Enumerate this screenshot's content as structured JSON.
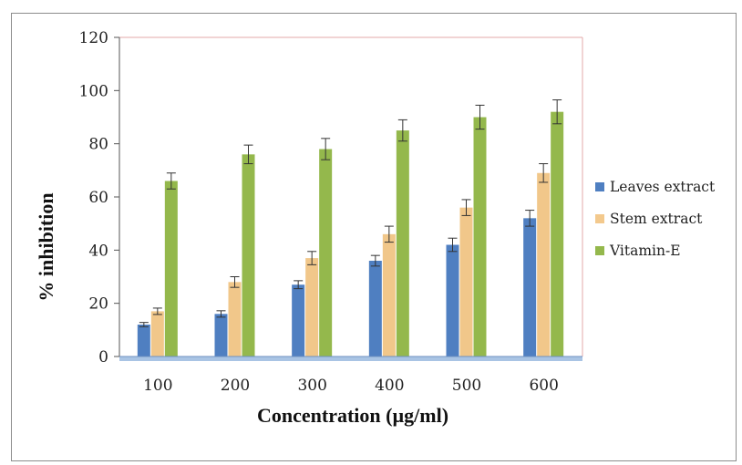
{
  "chart_data": {
    "type": "bar",
    "xlabel": "Concentration (µg/ml)",
    "ylabel": "% inhibition",
    "categories": [
      "100",
      "200",
      "300",
      "400",
      "500",
      "600"
    ],
    "ylim": [
      0,
      120
    ],
    "yticks": [
      "0",
      "20",
      "40",
      "60",
      "80",
      "100",
      "120"
    ],
    "grid": false,
    "legend_position": "right",
    "series": [
      {
        "name": "Leaves extract",
        "color": "#4f7fc1",
        "values": [
          12,
          16,
          27,
          36,
          42,
          52
        ],
        "errors": [
          0.8,
          1.2,
          1.5,
          2,
          2.5,
          3
        ]
      },
      {
        "name": "Stem extract",
        "color": "#f3c98d",
        "values": [
          17,
          28,
          37,
          46,
          56,
          69
        ],
        "errors": [
          1.2,
          2,
          2.5,
          3,
          3,
          3.5
        ]
      },
      {
        "name": "Vitamin-E",
        "color": "#94b84c",
        "values": [
          66,
          76,
          78,
          85,
          90,
          92
        ],
        "errors": [
          3,
          3.5,
          4,
          4,
          4.5,
          4.5
        ]
      }
    ]
  }
}
